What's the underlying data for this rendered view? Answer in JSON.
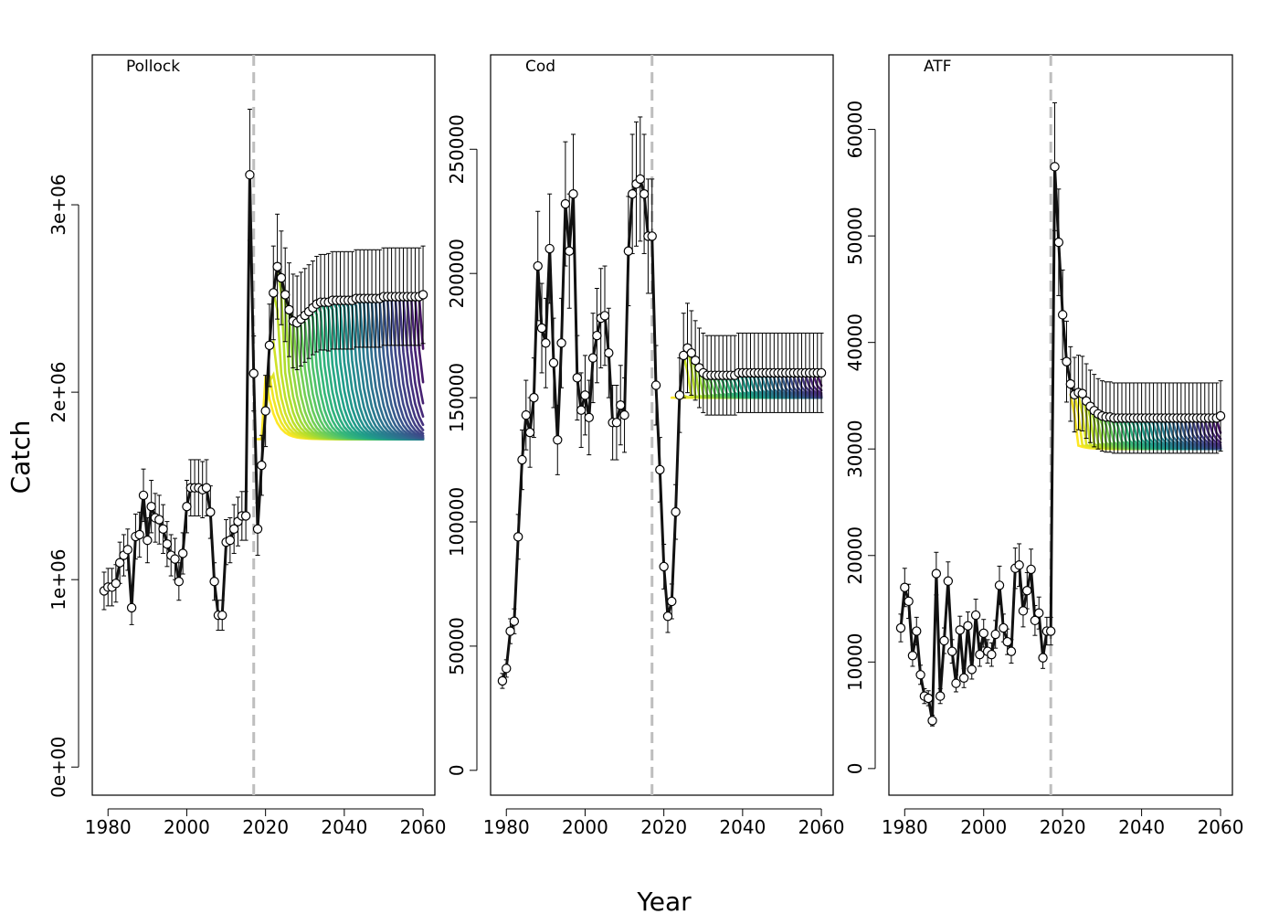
{
  "figure": {
    "ylabel": "Catch",
    "xlabel": "Year"
  },
  "chart_data": [
    {
      "type": "line",
      "title": "Pollock",
      "xlim": [
        1976,
        2063
      ],
      "ylim": [
        -150000,
        3800000
      ],
      "xticks": [
        1980,
        2000,
        2020,
        2040,
        2060
      ],
      "xtick_labels": [
        "1980",
        "2000",
        "2020",
        "2040",
        "2060"
      ],
      "yticks": [
        0,
        1000000,
        2000000,
        3000000
      ],
      "ytick_labels": [
        "0e+00",
        "1e+06",
        "2e+06",
        "3e+06"
      ],
      "vline_x": 2017,
      "grid": false,
      "legend": "none",
      "hist_x": [
        1979,
        1980,
        1981,
        1982,
        1983,
        1984,
        1985,
        1986,
        1987,
        1988,
        1989,
        1990,
        1991,
        1992,
        1993,
        1994,
        1995,
        1996,
        1997,
        1998,
        1999,
        2000,
        2001,
        2002,
        2003,
        2004,
        2005,
        2006,
        2007,
        2008,
        2009,
        2010,
        2011,
        2012,
        2013,
        2014,
        2015,
        2016,
        2017,
        2018,
        2019,
        2020,
        2021,
        2022,
        2023,
        2024,
        2025,
        2026,
        2027,
        2028,
        2029,
        2030,
        2031,
        2032,
        2033,
        2034,
        2035,
        2036,
        2037,
        2038,
        2039,
        2040,
        2041,
        2042,
        2043,
        2044,
        2045,
        2046,
        2047,
        2048,
        2049,
        2050,
        2051,
        2052,
        2053,
        2054,
        2055,
        2056,
        2057,
        2058,
        2059,
        2060
      ],
      "hist_y": [
        940000,
        960000,
        960000,
        980000,
        1090000,
        1130000,
        1160000,
        850000,
        1230000,
        1240000,
        1450000,
        1210000,
        1390000,
        1330000,
        1320000,
        1270000,
        1190000,
        1130000,
        1110000,
        990000,
        1140000,
        1390000,
        1490000,
        1490000,
        1490000,
        1480000,
        1490000,
        1360000,
        990000,
        810000,
        810000,
        1200000,
        1210000,
        1270000,
        1310000,
        1340000,
        1340000,
        3160000,
        2100000,
        1270000,
        1610000,
        1900000,
        2250000,
        2530000,
        2670000,
        2610000,
        2520000,
        2440000,
        2380000,
        2370000,
        2390000,
        2410000,
        2430000,
        2450000,
        2470000,
        2480000,
        2480000,
        2480000,
        2490000,
        2490000,
        2490000,
        2490000,
        2490000,
        2490000,
        2500000,
        2500000,
        2500000,
        2500000,
        2500000,
        2500000,
        2500000,
        2510000,
        2510000,
        2510000,
        2510000,
        2510000,
        2510000,
        2510000,
        2510000,
        2510000,
        2510000,
        2520000
      ],
      "hist_err": [
        100000,
        100000,
        100000,
        100000,
        110000,
        110000,
        110000,
        90000,
        120000,
        120000,
        140000,
        120000,
        140000,
        130000,
        130000,
        130000,
        120000,
        110000,
        110000,
        100000,
        110000,
        140000,
        150000,
        150000,
        150000,
        150000,
        150000,
        140000,
        100000,
        80000,
        80000,
        120000,
        120000,
        130000,
        130000,
        130000,
        130000,
        350000,
        200000,
        140000,
        160000,
        190000,
        220000,
        250000,
        280000,
        250000,
        250000,
        250000,
        250000,
        250000,
        250000,
        250000,
        250000,
        250000,
        255000,
        255000,
        255000,
        260000,
        260000,
        260000,
        260000,
        260000,
        260000,
        260000,
        260000,
        260000,
        260000,
        260000,
        260000,
        260000,
        260000,
        260000,
        260000,
        260000,
        260000,
        260000,
        260000,
        260000,
        260000,
        260000,
        260000,
        260000
      ],
      "proj_first_year": 2018,
      "proj_last_year": 2060,
      "proj_low": 1750000,
      "proj_band_low": 2280000,
      "proj_band_high": 2520000
    },
    {
      "type": "line",
      "title": "Cod",
      "xlim": [
        1976,
        2063
      ],
      "ylim": [
        -10000,
        288000
      ],
      "xticks": [
        1980,
        2000,
        2020,
        2040,
        2060
      ],
      "xtick_labels": [
        "1980",
        "2000",
        "2020",
        "2040",
        "2060"
      ],
      "yticks": [
        0,
        50000,
        100000,
        150000,
        200000,
        250000
      ],
      "ytick_labels": [
        "0",
        "50000",
        "100000",
        "150000",
        "200000",
        "250000"
      ],
      "vline_x": 2017,
      "grid": false,
      "legend": "none",
      "hist_x": [
        1979,
        1980,
        1981,
        1982,
        1983,
        1984,
        1985,
        1986,
        1987,
        1988,
        1989,
        1990,
        1991,
        1992,
        1993,
        1994,
        1995,
        1996,
        1997,
        1998,
        1999,
        2000,
        2001,
        2002,
        2003,
        2004,
        2005,
        2006,
        2007,
        2008,
        2009,
        2010,
        2011,
        2012,
        2013,
        2014,
        2015,
        2016,
        2017,
        2018,
        2019,
        2020,
        2021,
        2022,
        2023,
        2024,
        2025,
        2026,
        2027,
        2028,
        2029,
        2030,
        2031,
        2032,
        2033,
        2034,
        2035,
        2036,
        2037,
        2038,
        2039,
        2040,
        2041,
        2042,
        2043,
        2044,
        2045,
        2046,
        2047,
        2048,
        2049,
        2050,
        2051,
        2052,
        2053,
        2054,
        2055,
        2056,
        2057,
        2058,
        2059,
        2060
      ],
      "hist_y": [
        36000,
        41000,
        56000,
        60000,
        94000,
        125000,
        143000,
        136000,
        150000,
        203000,
        178000,
        172000,
        210000,
        164000,
        133000,
        172000,
        228000,
        209000,
        232000,
        158000,
        145000,
        151000,
        142000,
        166000,
        175000,
        182000,
        183000,
        168000,
        140000,
        140000,
        147000,
        143000,
        209000,
        232000,
        236000,
        238000,
        232000,
        215000,
        215000,
        155000,
        121000,
        82000,
        62000,
        68000,
        104000,
        151000,
        167000,
        170000,
        168000,
        165000,
        162000,
        160000,
        159000,
        159000,
        159000,
        159000,
        159000,
        159000,
        159000,
        159000,
        160000,
        160000,
        160000,
        160000,
        160000,
        160000,
        160000,
        160000,
        160000,
        160000,
        160000,
        160000,
        160000,
        160000,
        160000,
        160000,
        160000,
        160000,
        160000,
        160000,
        160000,
        160000
      ],
      "hist_err": [
        3000,
        3500,
        5000,
        5000,
        9000,
        12000,
        14000,
        14000,
        16000,
        22000,
        18000,
        18000,
        22000,
        18000,
        14000,
        18000,
        25000,
        23000,
        24000,
        17000,
        15000,
        16000,
        15000,
        18000,
        19000,
        20000,
        20000,
        18000,
        15000,
        15000,
        16000,
        15000,
        22000,
        24000,
        25000,
        25000,
        24000,
        23000,
        23000,
        16000,
        13000,
        9000,
        6500,
        7000,
        11000,
        15000,
        17000,
        18000,
        17000,
        16000,
        16000,
        16000,
        16000,
        16000,
        16000,
        16000,
        16000,
        16000,
        16000,
        16000,
        16000,
        16000,
        16000,
        16000,
        16000,
        16000,
        16000,
        16000,
        16000,
        16000,
        16000,
        16000,
        16000,
        16000,
        16000,
        16000,
        16000,
        16000,
        16000,
        16000,
        16000,
        16000
      ],
      "proj_first_year": 2022,
      "proj_last_year": 2060,
      "proj_low": 150000,
      "proj_band_low": 150000,
      "proj_band_high": 158000
    },
    {
      "type": "line",
      "title": "ATF",
      "xlim": [
        1976,
        2063
      ],
      "ylim": [
        -2500,
        67000
      ],
      "xticks": [
        1980,
        2000,
        2020,
        2040,
        2060
      ],
      "xtick_labels": [
        "1980",
        "2000",
        "2020",
        "2040",
        "2060"
      ],
      "yticks": [
        0,
        10000,
        20000,
        30000,
        40000,
        50000,
        60000
      ],
      "ytick_labels": [
        "0",
        "10000",
        "20000",
        "30000",
        "40000",
        "50000",
        "60000"
      ],
      "vline_x": 2017,
      "grid": false,
      "legend": "none",
      "hist_x": [
        1979,
        1980,
        1981,
        1982,
        1983,
        1984,
        1985,
        1986,
        1987,
        1988,
        1989,
        1990,
        1991,
        1992,
        1993,
        1994,
        1995,
        1996,
        1997,
        1998,
        1999,
        2000,
        2001,
        2002,
        2003,
        2004,
        2005,
        2006,
        2007,
        2008,
        2009,
        2010,
        2011,
        2012,
        2013,
        2014,
        2015,
        2016,
        2017,
        2018,
        2019,
        2020,
        2021,
        2022,
        2023,
        2024,
        2025,
        2026,
        2027,
        2028,
        2029,
        2030,
        2031,
        2032,
        2033,
        2034,
        2035,
        2036,
        2037,
        2038,
        2039,
        2040,
        2041,
        2042,
        2043,
        2044,
        2045,
        2046,
        2047,
        2048,
        2049,
        2050,
        2051,
        2052,
        2053,
        2054,
        2055,
        2056,
        2057,
        2058,
        2059,
        2060
      ],
      "hist_y": [
        13200,
        17000,
        15700,
        10600,
        12900,
        8800,
        6800,
        6600,
        4500,
        18300,
        6800,
        12000,
        17600,
        11000,
        8000,
        13000,
        8500,
        13400,
        9300,
        14400,
        10700,
        12700,
        11000,
        10700,
        12600,
        17200,
        13200,
        11900,
        11000,
        18800,
        19100,
        14800,
        16700,
        18700,
        13900,
        14600,
        10400,
        12900,
        12900,
        56500,
        49400,
        42600,
        38200,
        36100,
        35100,
        35300,
        35200,
        34500,
        34000,
        33600,
        33300,
        33100,
        33000,
        33000,
        32900,
        32900,
        32900,
        32900,
        32900,
        32900,
        32900,
        32900,
        32900,
        32900,
        32900,
        32900,
        32900,
        32900,
        32900,
        32900,
        32900,
        32900,
        32900,
        32900,
        32900,
        32900,
        32900,
        32900,
        32900,
        32900,
        32900,
        33100
      ],
      "hist_err": [
        1300,
        1800,
        1600,
        1000,
        1300,
        900,
        700,
        700,
        500,
        2000,
        700,
        1200,
        1800,
        1100,
        800,
        1300,
        900,
        1300,
        900,
        1500,
        1100,
        1300,
        1100,
        1100,
        1300,
        1800,
        1300,
        1200,
        1100,
        1900,
        2000,
        1500,
        1700,
        1900,
        1400,
        1500,
        1000,
        1300,
        1300,
        6000,
        5000,
        4200,
        3800,
        3500,
        3500,
        3500,
        3500,
        3500,
        3400,
        3400,
        3300,
        3300,
        3300,
        3300,
        3300,
        3300,
        3300,
        3300,
        3300,
        3300,
        3300,
        3300,
        3300,
        3300,
        3300,
        3300,
        3300,
        3300,
        3300,
        3300,
        3300,
        3300,
        3300,
        3300,
        3300,
        3300,
        3300,
        3300,
        3300,
        3300,
        3300,
        3300
      ],
      "proj_first_year": 2022,
      "proj_last_year": 2060,
      "proj_low": 30000,
      "proj_band_low": 30500,
      "proj_band_high": 32500
    }
  ]
}
